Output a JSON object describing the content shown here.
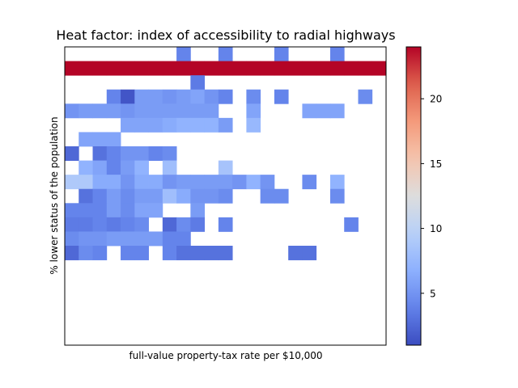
{
  "chart_data": {
    "type": "heatmap",
    "title": "Heat factor: index of accessibility to radial highways",
    "xlabel": "full-value property-tax rate per $10,000",
    "ylabel": "% lower status of the population",
    "x_ticks_visible": false,
    "y_ticks_visible": false,
    "n_rows": 21,
    "n_cols": 23,
    "row_order": "top-to-bottom",
    "colormap": "coolwarm",
    "colorbar": {
      "vmin": 1,
      "vmax": 24,
      "ticks": [
        5,
        10,
        15,
        20
      ]
    },
    "empty_cell_color": "#ffffff",
    "cells": [
      {
        "row": 0,
        "col": 8,
        "value": 4
      },
      {
        "row": 0,
        "col": 11,
        "value": 4
      },
      {
        "row": 0,
        "col": 15,
        "value": 4
      },
      {
        "row": 0,
        "col": 19,
        "value": 4
      },
      {
        "row": 1,
        "col": 0,
        "value": 24
      },
      {
        "row": 1,
        "col": 1,
        "value": 24
      },
      {
        "row": 1,
        "col": 2,
        "value": 24
      },
      {
        "row": 1,
        "col": 3,
        "value": 24
      },
      {
        "row": 1,
        "col": 4,
        "value": 24
      },
      {
        "row": 1,
        "col": 5,
        "value": 24
      },
      {
        "row": 1,
        "col": 6,
        "value": 24
      },
      {
        "row": 1,
        "col": 7,
        "value": 24
      },
      {
        "row": 1,
        "col": 8,
        "value": 24
      },
      {
        "row": 1,
        "col": 9,
        "value": 24
      },
      {
        "row": 1,
        "col": 10,
        "value": 24
      },
      {
        "row": 1,
        "col": 11,
        "value": 24
      },
      {
        "row": 1,
        "col": 12,
        "value": 24
      },
      {
        "row": 1,
        "col": 13,
        "value": 24
      },
      {
        "row": 1,
        "col": 14,
        "value": 24
      },
      {
        "row": 1,
        "col": 15,
        "value": 24
      },
      {
        "row": 1,
        "col": 16,
        "value": 24
      },
      {
        "row": 1,
        "col": 17,
        "value": 24
      },
      {
        "row": 1,
        "col": 18,
        "value": 24
      },
      {
        "row": 1,
        "col": 19,
        "value": 24
      },
      {
        "row": 1,
        "col": 20,
        "value": 24
      },
      {
        "row": 1,
        "col": 21,
        "value": 24
      },
      {
        "row": 1,
        "col": 22,
        "value": 24
      },
      {
        "row": 2,
        "col": 9,
        "value": 3.5
      },
      {
        "row": 3,
        "col": 3,
        "value": 4
      },
      {
        "row": 3,
        "col": 4,
        "value": 1.5
      },
      {
        "row": 3,
        "col": 5,
        "value": 5.5
      },
      {
        "row": 3,
        "col": 6,
        "value": 5.5
      },
      {
        "row": 3,
        "col": 7,
        "value": 5
      },
      {
        "row": 3,
        "col": 8,
        "value": 5.5
      },
      {
        "row": 3,
        "col": 9,
        "value": 6
      },
      {
        "row": 3,
        "col": 10,
        "value": 5
      },
      {
        "row": 3,
        "col": 11,
        "value": 4
      },
      {
        "row": 3,
        "col": 13,
        "value": 4.5
      },
      {
        "row": 3,
        "col": 15,
        "value": 4
      },
      {
        "row": 3,
        "col": 21,
        "value": 4.5
      },
      {
        "row": 4,
        "col": 0,
        "value": 5
      },
      {
        "row": 4,
        "col": 1,
        "value": 5.5
      },
      {
        "row": 4,
        "col": 2,
        "value": 5.5
      },
      {
        "row": 4,
        "col": 3,
        "value": 5.5
      },
      {
        "row": 4,
        "col": 4,
        "value": 5
      },
      {
        "row": 4,
        "col": 5,
        "value": 5.5
      },
      {
        "row": 4,
        "col": 6,
        "value": 5.5
      },
      {
        "row": 4,
        "col": 7,
        "value": 5.5
      },
      {
        "row": 4,
        "col": 8,
        "value": 5.5
      },
      {
        "row": 4,
        "col": 9,
        "value": 5.5
      },
      {
        "row": 4,
        "col": 10,
        "value": 5.5
      },
      {
        "row": 4,
        "col": 13,
        "value": 6
      },
      {
        "row": 4,
        "col": 17,
        "value": 6
      },
      {
        "row": 4,
        "col": 18,
        "value": 6
      },
      {
        "row": 4,
        "col": 19,
        "value": 6
      },
      {
        "row": 5,
        "col": 4,
        "value": 6
      },
      {
        "row": 5,
        "col": 5,
        "value": 6
      },
      {
        "row": 5,
        "col": 6,
        "value": 6
      },
      {
        "row": 5,
        "col": 7,
        "value": 6.5
      },
      {
        "row": 5,
        "col": 8,
        "value": 7
      },
      {
        "row": 5,
        "col": 9,
        "value": 7
      },
      {
        "row": 5,
        "col": 10,
        "value": 7
      },
      {
        "row": 5,
        "col": 11,
        "value": 5.5
      },
      {
        "row": 5,
        "col": 13,
        "value": 7.5
      },
      {
        "row": 6,
        "col": 1,
        "value": 6
      },
      {
        "row": 6,
        "col": 2,
        "value": 6
      },
      {
        "row": 6,
        "col": 3,
        "value": 6
      },
      {
        "row": 7,
        "col": 0,
        "value": 2.5
      },
      {
        "row": 7,
        "col": 2,
        "value": 3
      },
      {
        "row": 7,
        "col": 3,
        "value": 4
      },
      {
        "row": 7,
        "col": 4,
        "value": 5
      },
      {
        "row": 7,
        "col": 5,
        "value": 5
      },
      {
        "row": 7,
        "col": 6,
        "value": 4
      },
      {
        "row": 7,
        "col": 7,
        "value": 4.5
      },
      {
        "row": 8,
        "col": 1,
        "value": 7
      },
      {
        "row": 8,
        "col": 2,
        "value": 6
      },
      {
        "row": 8,
        "col": 3,
        "value": 4
      },
      {
        "row": 8,
        "col": 4,
        "value": 5.5
      },
      {
        "row": 8,
        "col": 5,
        "value": 7
      },
      {
        "row": 8,
        "col": 7,
        "value": 8
      },
      {
        "row": 8,
        "col": 11,
        "value": 8.5
      },
      {
        "row": 9,
        "col": 0,
        "value": 9
      },
      {
        "row": 9,
        "col": 1,
        "value": 9
      },
      {
        "row": 9,
        "col": 2,
        "value": 6.5
      },
      {
        "row": 9,
        "col": 3,
        "value": 6.5
      },
      {
        "row": 9,
        "col": 4,
        "value": 5
      },
      {
        "row": 9,
        "col": 5,
        "value": 6.5
      },
      {
        "row": 9,
        "col": 6,
        "value": 6.5
      },
      {
        "row": 9,
        "col": 7,
        "value": 5
      },
      {
        "row": 9,
        "col": 8,
        "value": 5.5
      },
      {
        "row": 9,
        "col": 9,
        "value": 5.5
      },
      {
        "row": 9,
        "col": 10,
        "value": 5.5
      },
      {
        "row": 9,
        "col": 11,
        "value": 5.5
      },
      {
        "row": 9,
        "col": 12,
        "value": 5
      },
      {
        "row": 9,
        "col": 13,
        "value": 7
      },
      {
        "row": 9,
        "col": 14,
        "value": 5
      },
      {
        "row": 9,
        "col": 17,
        "value": 4.5
      },
      {
        "row": 9,
        "col": 19,
        "value": 7
      },
      {
        "row": 10,
        "col": 1,
        "value": 3
      },
      {
        "row": 10,
        "col": 2,
        "value": 4
      },
      {
        "row": 10,
        "col": 3,
        "value": 5.5
      },
      {
        "row": 10,
        "col": 4,
        "value": 4.5
      },
      {
        "row": 10,
        "col": 5,
        "value": 5.5
      },
      {
        "row": 10,
        "col": 6,
        "value": 5.5
      },
      {
        "row": 10,
        "col": 7,
        "value": 8
      },
      {
        "row": 10,
        "col": 8,
        "value": 6.5
      },
      {
        "row": 10,
        "col": 9,
        "value": 5
      },
      {
        "row": 10,
        "col": 10,
        "value": 5
      },
      {
        "row": 10,
        "col": 11,
        "value": 4.5
      },
      {
        "row": 10,
        "col": 14,
        "value": 4.5
      },
      {
        "row": 10,
        "col": 15,
        "value": 4.5
      },
      {
        "row": 10,
        "col": 19,
        "value": 4.5
      },
      {
        "row": 11,
        "col": 0,
        "value": 4
      },
      {
        "row": 11,
        "col": 1,
        "value": 4
      },
      {
        "row": 11,
        "col": 2,
        "value": 4
      },
      {
        "row": 11,
        "col": 3,
        "value": 5.5
      },
      {
        "row": 11,
        "col": 4,
        "value": 4.5
      },
      {
        "row": 11,
        "col": 5,
        "value": 6
      },
      {
        "row": 11,
        "col": 6,
        "value": 6
      },
      {
        "row": 11,
        "col": 9,
        "value": 5.5
      },
      {
        "row": 12,
        "col": 0,
        "value": 3.5
      },
      {
        "row": 12,
        "col": 1,
        "value": 3.5
      },
      {
        "row": 12,
        "col": 2,
        "value": 4
      },
      {
        "row": 12,
        "col": 3,
        "value": 3.5
      },
      {
        "row": 12,
        "col": 4,
        "value": 4
      },
      {
        "row": 12,
        "col": 5,
        "value": 4.5
      },
      {
        "row": 12,
        "col": 7,
        "value": 2.5
      },
      {
        "row": 12,
        "col": 8,
        "value": 4.5
      },
      {
        "row": 12,
        "col": 9,
        "value": 3.5
      },
      {
        "row": 12,
        "col": 11,
        "value": 4
      },
      {
        "row": 12,
        "col": 20,
        "value": 4
      },
      {
        "row": 13,
        "col": 0,
        "value": 4.5
      },
      {
        "row": 13,
        "col": 1,
        "value": 5
      },
      {
        "row": 13,
        "col": 2,
        "value": 5
      },
      {
        "row": 13,
        "col": 3,
        "value": 5.5
      },
      {
        "row": 13,
        "col": 4,
        "value": 5.5
      },
      {
        "row": 13,
        "col": 5,
        "value": 5.5
      },
      {
        "row": 13,
        "col": 6,
        "value": 5.5
      },
      {
        "row": 13,
        "col": 7,
        "value": 4
      },
      {
        "row": 13,
        "col": 8,
        "value": 4
      },
      {
        "row": 14,
        "col": 0,
        "value": 2.5
      },
      {
        "row": 14,
        "col": 1,
        "value": 4.5
      },
      {
        "row": 14,
        "col": 2,
        "value": 4
      },
      {
        "row": 14,
        "col": 4,
        "value": 4
      },
      {
        "row": 14,
        "col": 5,
        "value": 4
      },
      {
        "row": 14,
        "col": 7,
        "value": 4
      },
      {
        "row": 14,
        "col": 8,
        "value": 3
      },
      {
        "row": 14,
        "col": 9,
        "value": 3
      },
      {
        "row": 14,
        "col": 10,
        "value": 3
      },
      {
        "row": 14,
        "col": 11,
        "value": 3
      },
      {
        "row": 14,
        "col": 16,
        "value": 3
      },
      {
        "row": 14,
        "col": 17,
        "value": 3
      }
    ]
  }
}
